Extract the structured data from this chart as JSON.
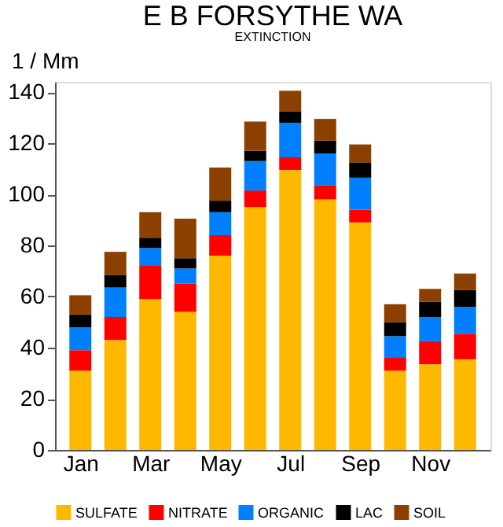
{
  "chart_data": {
    "type": "bar",
    "title": "E B FORSYTHE WA",
    "subtitle": "EXTINCTION",
    "ylabel": "1 / Mm",
    "categories": [
      "Jan",
      null,
      "Mar",
      null,
      "May",
      null,
      "Jul",
      null,
      "Sep",
      null,
      "Nov",
      null
    ],
    "stacked": true,
    "ylim": [
      0,
      144
    ],
    "yticks": [
      0,
      20,
      40,
      60,
      80,
      100,
      120,
      140
    ],
    "grid": false,
    "legend": "bottom",
    "series": [
      {
        "name": "SULFATE",
        "color": "#ffb800",
        "values": [
          31,
          43,
          59,
          54,
          76,
          95,
          109.5,
          98,
          89,
          31,
          33.5,
          35.5
        ]
      },
      {
        "name": "NITRATE",
        "color": "#ff0000",
        "values": [
          8,
          9,
          13,
          11,
          8,
          6.5,
          5,
          5.5,
          5,
          5,
          9,
          10
        ]
      },
      {
        "name": "ORGANIC",
        "color": "#0080ff",
        "values": [
          9,
          11.5,
          7,
          6,
          9,
          11.5,
          13.5,
          12.5,
          12.5,
          8.5,
          9.5,
          10.5
        ]
      },
      {
        "name": "LAC",
        "color": "#000000",
        "values": [
          5,
          5,
          4,
          4,
          4.5,
          4,
          4.5,
          5,
          6,
          5.5,
          6,
          6.5
        ]
      },
      {
        "name": "SOIL",
        "color": "#8b4000",
        "values": [
          7.5,
          9,
          10,
          15.5,
          13,
          11.5,
          8,
          8.5,
          7,
          7,
          5,
          6.5
        ]
      }
    ]
  }
}
